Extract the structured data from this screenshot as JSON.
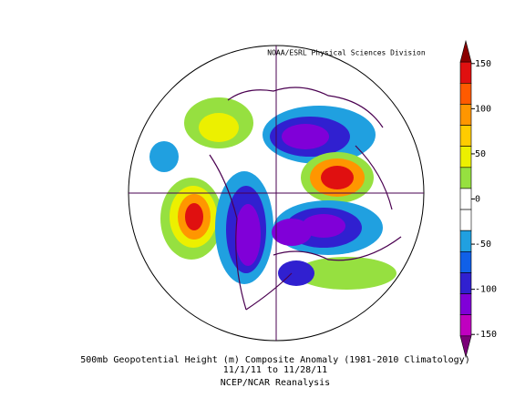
{
  "credit": "NOAA/ESRL Physical Sciences Division",
  "caption": [
    "500mb Geopotential Height (m) Composite Anomaly (1981-2010 Climatology)",
    "11/1/11  to 11/28/11",
    "NCEP/NCAR Reanalysis"
  ],
  "colorbar": {
    "lim": [
      -175,
      175
    ],
    "ticks": [
      150,
      100,
      50,
      0,
      -50,
      -100,
      -150
    ],
    "colors": [
      "#8b0000",
      "#e01010",
      "#ff5a00",
      "#ff9600",
      "#ffcc00",
      "#ecf000",
      "#96e040",
      "#ffffff",
      "#ffffff",
      "#20a0e0",
      "#1060e8",
      "#3020d0",
      "#8000d8",
      "#c000c0",
      "#7a0078"
    ]
  }
}
